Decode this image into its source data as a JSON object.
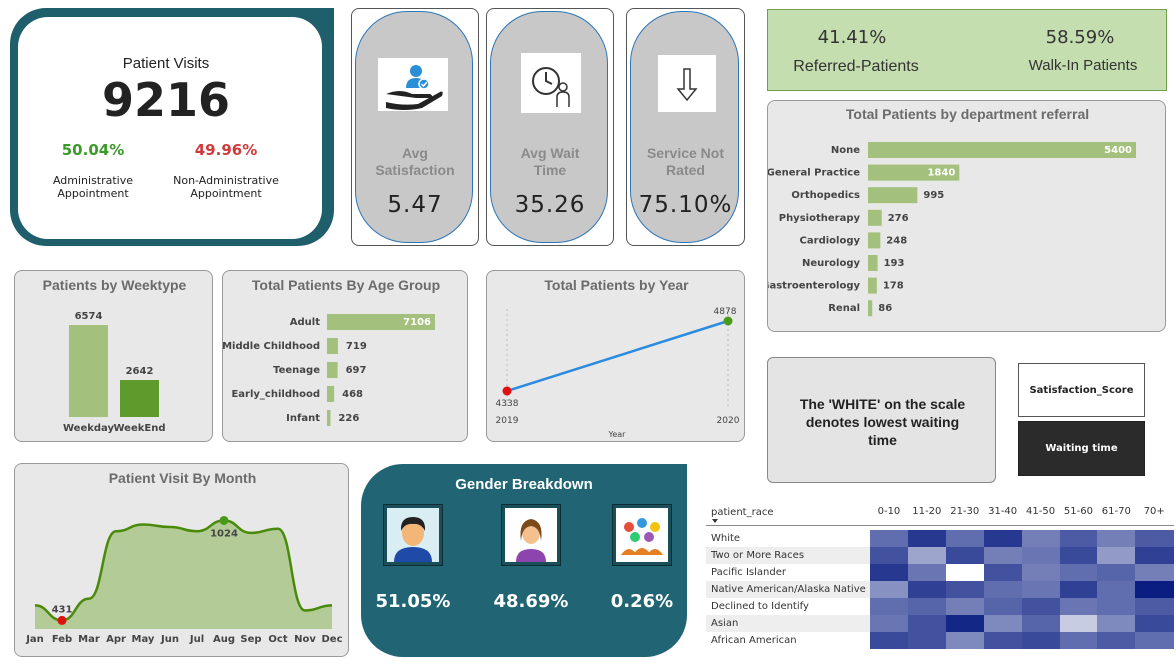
{
  "patient_visits": {
    "title": "Patient Visits",
    "total": "9216",
    "admin_pct": "50.04%",
    "admin_label_1": "Administrative",
    "admin_label_2": "Appointment",
    "nonadmin_pct": "49.96%",
    "nonadmin_label_1": "Non-Administrative",
    "nonadmin_label_2": "Appointment",
    "colors": {
      "admin": "#3a9a2a",
      "nonadmin": "#d13a3a",
      "frame": "#1f5f6b"
    }
  },
  "kpis": [
    {
      "icon": "satisfaction-hand-icon",
      "label_1": "Avg",
      "label_2": "Satisfaction",
      "value": "5.47"
    },
    {
      "icon": "clock-person-icon",
      "label_1": "Avg Wait",
      "label_2": "Time",
      "value": "35.26"
    },
    {
      "icon": "down-arrow-icon",
      "label_1": "Service Not",
      "label_2": "Rated",
      "value": "75.10%"
    }
  ],
  "referral_split": {
    "referred_pct": "41.41%",
    "referred_label": "Referred-Patients",
    "walkin_pct": "58.59%",
    "walkin_label": "Walk-In Patients"
  },
  "charts": {
    "department": {
      "title": "Total Patients by department referral"
    },
    "weektype": {
      "title": "Patients by Weektype"
    },
    "age": {
      "title": "Total Patients By Age Group"
    },
    "year": {
      "title": "Total Patients by Year",
      "xlabel": "Year"
    },
    "month": {
      "title": "Patient Visit By Month"
    }
  },
  "chart_data": [
    {
      "type": "bar",
      "title": "Total Patients by department referral",
      "orientation": "horizontal",
      "categories": [
        "None",
        "General Practice",
        "Orthopedics",
        "Physiotherapy",
        "Cardiology",
        "Neurology",
        "Gastroenterology",
        "Renal"
      ],
      "values": [
        5400,
        1840,
        995,
        276,
        248,
        193,
        178,
        86
      ],
      "xlim": [
        0,
        5400
      ]
    },
    {
      "type": "bar",
      "title": "Patients by Weektype",
      "categories": [
        "Weekday",
        "WeekEnd"
      ],
      "values": [
        6574,
        2642
      ],
      "colors": [
        "#a3c17c",
        "#5e9a2c"
      ],
      "ylim": [
        0,
        6574
      ]
    },
    {
      "type": "bar",
      "title": "Total Patients By Age Group",
      "orientation": "horizontal",
      "categories": [
        "Adult",
        "Middle Childhood",
        "Teenage",
        "Early_childhood",
        "Infant"
      ],
      "values": [
        7106,
        719,
        697,
        468,
        226
      ],
      "xlim": [
        0,
        7106
      ]
    },
    {
      "type": "line",
      "title": "Total Patients by Year",
      "xlabel": "Year",
      "x": [
        "2019",
        "2020"
      ],
      "values": [
        4338,
        4878
      ],
      "colors": {
        "line": "#2b8be0",
        "min": "#e01010",
        "max": "#4a9a1a"
      }
    },
    {
      "type": "area",
      "title": "Patient Visit By Month",
      "x": [
        "Jan",
        "Feb",
        "Mar",
        "Apr",
        "May",
        "Jun",
        "Jul",
        "Aug",
        "Sep",
        "Oct",
        "Nov",
        "Dec"
      ],
      "values": [
        520,
        431,
        560,
        960,
        1000,
        985,
        960,
        1024,
        950,
        975,
        490,
        520
      ],
      "labels": {
        "Feb": "431",
        "Aug": "1024"
      },
      "ylim": [
        380,
        1080
      ],
      "colors": {
        "line": "#4a8a0a",
        "fill": "#b3cb96"
      }
    },
    {
      "type": "heatmap",
      "row_header": "patient_race",
      "columns": [
        "0-10",
        "11-20",
        "21-30",
        "31-40",
        "41-50",
        "51-60",
        "61-70",
        "70+"
      ],
      "rows": [
        "White",
        "Two or More Races",
        "Pacific Islander",
        "Native American/Alaska Native",
        "Declined to Identify",
        "Asian",
        "African American"
      ],
      "values": [
        [
          0.55,
          0.85,
          0.55,
          0.85,
          0.45,
          0.65,
          0.45,
          0.65
        ],
        [
          0.7,
          0.25,
          0.75,
          0.45,
          0.5,
          0.75,
          0.3,
          0.8
        ],
        [
          0.85,
          0.5,
          0.0,
          0.7,
          0.45,
          0.55,
          0.6,
          0.45
        ],
        [
          0.35,
          0.8,
          0.7,
          0.55,
          0.5,
          0.8,
          0.55,
          1.0
        ],
        [
          0.55,
          0.6,
          0.45,
          0.6,
          0.7,
          0.5,
          0.55,
          0.65
        ],
        [
          0.5,
          0.7,
          0.95,
          0.4,
          0.6,
          0.05,
          0.4,
          0.75
        ],
        [
          0.75,
          0.7,
          0.4,
          0.7,
          0.75,
          0.55,
          0.65,
          0.55
        ]
      ]
    }
  ],
  "note": {
    "text_1": "The 'WHITE' on the scale",
    "text_2": "denotes lowest waiting",
    "text_3": "time"
  },
  "legend_buttons": {
    "satisfaction": "Satisfaction_Score",
    "waiting": "Waiting time"
  },
  "gender": {
    "title": "Gender Breakdown",
    "items": [
      {
        "icon": "male-avatar-icon",
        "value": "51.05%"
      },
      {
        "icon": "female-avatar-icon",
        "value": "48.69%"
      },
      {
        "icon": "group-people-icon",
        "value": "0.26%"
      }
    ]
  }
}
